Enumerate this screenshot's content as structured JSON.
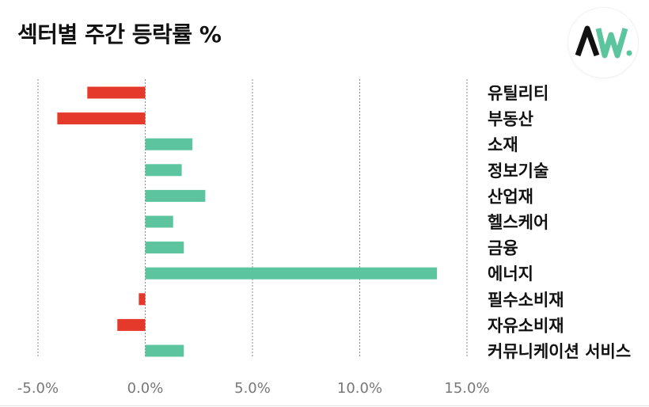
{
  "title": "섹터별 주간 등락률 %",
  "logo": {
    "text": "AW",
    "icon": "aw-logo-icon",
    "colors": {
      "dark": "#111111",
      "green": "#5cc49e"
    }
  },
  "colors": {
    "positive": "#5cc49e",
    "negative": "#e53a2b",
    "gridline": "#888888"
  },
  "chart_data": {
    "type": "bar",
    "orientation": "horizontal",
    "title": "섹터별 주간 등락률 %",
    "categories": [
      "유틸리티",
      "부동산",
      "소재",
      "정보기술",
      "산업재",
      "헬스케어",
      "금융",
      "에너지",
      "필수소비재",
      "자유소비재",
      "커뮤니케이션 서비스"
    ],
    "values": [
      -2.7,
      -4.1,
      2.2,
      1.7,
      2.8,
      1.3,
      1.8,
      13.6,
      -0.3,
      -1.3,
      1.8
    ],
    "xticks": [
      "-5.0%",
      "0.0%",
      "5.0%",
      "10.0%",
      "15.0%"
    ],
    "xtick_values": [
      -5,
      0,
      5,
      10,
      15
    ],
    "xlim": [
      -5,
      15
    ],
    "xlabel": "",
    "ylabel": "",
    "grid": "vertical dashed",
    "legend": "none"
  }
}
